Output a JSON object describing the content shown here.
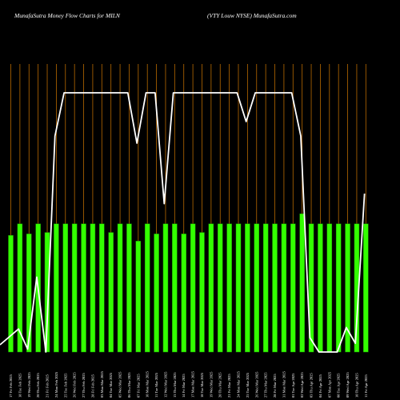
{
  "header": {
    "left": "MunafaSutra  Money Flow  Charts for MILN",
    "right": "(VTY Louw NYSE) MunafaSutra.com"
  },
  "colors": {
    "background": "#000000",
    "bar": "#33ff00",
    "bar_edge": "#1a9900",
    "grid": "#b86a00",
    "line": "#ffffff"
  },
  "chart_data": {
    "type": "bar",
    "title": "MunafaSutra  Money Flow  Charts for MILN",
    "subtitle": "(VTY Louw NYSE) MunafaSutra.com",
    "categories": [
      "17 Fri Feb 2025",
      "18 Tue Feb 2025",
      "19 Wed Feb 2025",
      "20 Thu Feb 2025",
      "21 Fri Feb 2025",
      "24 Mon Feb 2025",
      "25 Tue Feb 2025",
      "26 Wed Feb 2025",
      "27 Thu Feb 2025",
      "28 Fri Feb 2025",
      "03 Mon Mar 2025",
      "04 Tue Mar 2025",
      "05 Wed Mar 2025",
      "06 Thu Mar 2025",
      "07 Fri Mar 2025",
      "10 Mon Mar 2025",
      "11 Tue Mar 2025",
      "12 Wed Mar 2025",
      "13 Thu Mar 2025",
      "14 Fri Mar 2025",
      "17 Mon Mar 2025",
      "18 Tue Mar 2025",
      "19 Wed Mar 2025",
      "20 Thu Mar 2025",
      "21 Fri Mar 2025",
      "24 Mon Mar 2025",
      "25 Tue Mar 2025",
      "26 Wed Mar 2025",
      "27 Thu Mar 2025",
      "28 Fri Mar 2025",
      "31 Mon Mar 2025",
      "01 Tue Apr 2025",
      "02 Wed Apr 2025",
      "03 Thu Apr 2025",
      "04 Fri Apr 2025",
      "07 Mon Apr 2025",
      "08 Tue Apr 2025",
      "09 Wed Apr 2025",
      "10 Thu Apr 2025",
      "11 Fri Apr 2025"
    ],
    "series": [
      {
        "kind": "bar",
        "values": [
          0.81,
          0.89,
          0.82,
          0.89,
          0.83,
          0.89,
          0.89,
          0.89,
          0.89,
          0.89,
          0.89,
          0.83,
          0.89,
          0.89,
          0.77,
          0.89,
          0.82,
          0.89,
          0.89,
          0.82,
          0.89,
          0.83,
          0.89,
          0.89,
          0.89,
          0.89,
          0.89,
          0.89,
          0.89,
          0.89,
          0.89,
          0.89,
          0.96,
          0.89,
          0.89,
          0.89,
          0.89,
          0.89,
          0.89,
          0.89
        ]
      },
      {
        "kind": "line",
        "values": [
          0.05,
          0.16,
          0.02,
          0.52,
          0.0,
          1.5,
          1.8,
          1.8,
          1.8,
          1.8,
          1.8,
          1.8,
          1.8,
          1.8,
          1.45,
          1.8,
          1.8,
          1.03,
          1.8,
          1.8,
          1.8,
          1.8,
          1.8,
          1.8,
          1.8,
          1.8,
          1.6,
          1.8,
          1.8,
          1.8,
          1.8,
          1.8,
          1.5,
          0.1,
          0.0,
          0.0,
          0.0,
          0.17,
          0.06,
          1.1
        ]
      }
    ],
    "ylim": [
      0,
      1.8
    ],
    "grid": true,
    "xlabel": "",
    "ylabel": ""
  }
}
